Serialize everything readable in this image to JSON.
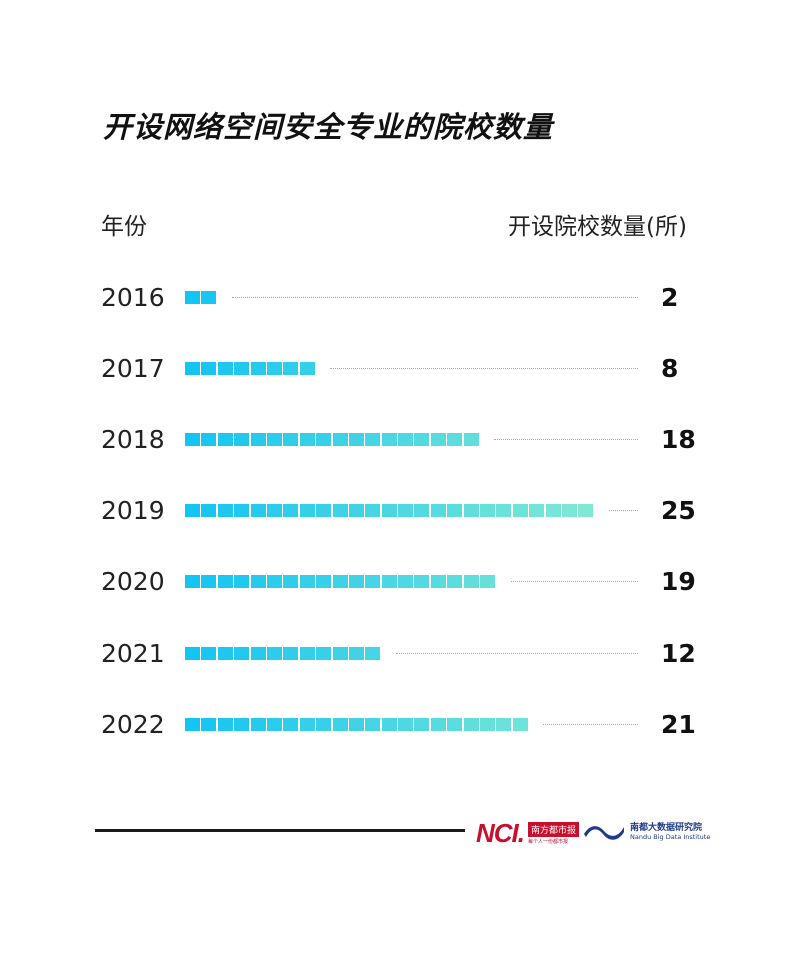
{
  "title": "开设网络空间安全专业的院校数量",
  "headers": {
    "year": "年份",
    "count": "开设院校数量(所)"
  },
  "colors": {
    "bar_start": "#14c4f2",
    "bar_end": "#80e9d3",
    "dotted_line": "#a8a8a8",
    "brand_red": "#c8102e",
    "brand_blue": "#1f3a8a"
  },
  "rows": [
    {
      "year": "2016",
      "value": "2"
    },
    {
      "year": "2017",
      "value": "8"
    },
    {
      "year": "2018",
      "value": "18"
    },
    {
      "year": "2019",
      "value": "25"
    },
    {
      "year": "2020",
      "value": "19"
    },
    {
      "year": "2021",
      "value": "12"
    },
    {
      "year": "2022",
      "value": "21"
    }
  ],
  "footer": {
    "logo1_mark": "NCI.",
    "logo1_name": "南方都市报",
    "logo1_slogan": "每个人一份都市报",
    "logo2_cn": "南都大数据研究院",
    "logo2_en": "Nandu Big Data Institute"
  },
  "chart_data": {
    "type": "bar",
    "orientation": "horizontal",
    "title": "开设网络空间安全专业的院校数量",
    "xlabel": "开设院校数量(所)",
    "ylabel": "年份",
    "categories": [
      "2016",
      "2017",
      "2018",
      "2019",
      "2020",
      "2021",
      "2022"
    ],
    "values": [
      2,
      8,
      18,
      25,
      19,
      12,
      21
    ],
    "grid": false,
    "legend": null,
    "style": "segmented blocks, one block per unit, blue-to-mint gradient, dotted leader to value label"
  }
}
